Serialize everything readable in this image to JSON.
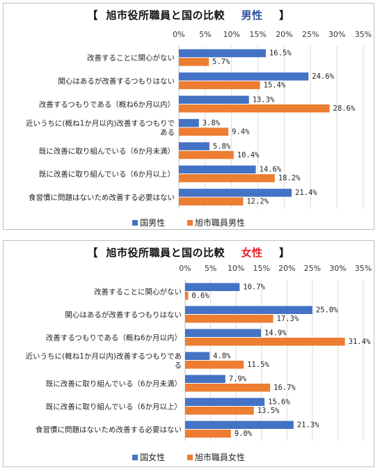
{
  "colors": {
    "blue": "#4472c4",
    "orange": "#ed7d31",
    "male_accent": "#2e4fa0",
    "female_accent": "#e8212b",
    "grid": "#d9d9d9"
  },
  "chart_data": [
    {
      "type": "bar",
      "title": {
        "prefix": "【",
        "main": "旭市役所職員と国の比較",
        "highlight": "男性",
        "suffix": "】"
      },
      "orientation": "horizontal",
      "xlim": [
        0,
        35
      ],
      "ticks": [
        "0%",
        "5%",
        "10%",
        "15%",
        "20%",
        "25%",
        "30%",
        "35%"
      ],
      "categories": [
        [
          "改善することに関心がない"
        ],
        [
          "関心はあるが改善するつもりはない"
        ],
        [
          "改善するつもりである（概ね6か月以内）"
        ],
        [
          "近いうちに(概ね1か月以内)改善するつもりで",
          "ある"
        ],
        [
          "既に改善に取り組んでいる（6か月未満）"
        ],
        [
          "既に改善に取り組んでいる（6か月以上）"
        ],
        [
          "食習慣に問題はないため改善する必要はない"
        ]
      ],
      "series": [
        {
          "name": "国男性",
          "values": [
            16.5,
            24.6,
            13.3,
            3.8,
            5.8,
            14.6,
            21.4
          ],
          "labels": [
            "16.5%",
            "24.6%",
            "13.3%",
            "3.8%",
            "5.8%",
            "14.6%",
            "21.4%"
          ]
        },
        {
          "name": "旭市職員男性",
          "values": [
            5.7,
            15.4,
            28.6,
            9.4,
            10.4,
            18.2,
            12.2
          ],
          "labels": [
            "5.7%",
            "15.4%",
            "28.6%",
            "9.4%",
            "10.4%",
            "18.2%",
            "12.2%"
          ]
        }
      ],
      "grid": true,
      "legend": "bottom"
    },
    {
      "type": "bar",
      "title": {
        "prefix": "【",
        "main": "旭市役所職員と国の比較",
        "highlight": "女性",
        "suffix": "】"
      },
      "orientation": "horizontal",
      "xlim": [
        0,
        35
      ],
      "ticks": [
        "0%",
        "5%",
        "10%",
        "15%",
        "20%",
        "25%",
        "30%",
        "35%"
      ],
      "categories": [
        [
          "改善することに関心がない"
        ],
        [
          "関心はあるが改善するつもりはない"
        ],
        [
          "改善するつもりである（概ね6か月以内）"
        ],
        [
          "近いうちに(概ね1か月以内)改善するつもりであ",
          "る"
        ],
        [
          "既に改善に取り組んでいる（6か月未満）"
        ],
        [
          "既に改善に取り組んでいる（6か月以上）"
        ],
        [
          "食習慣に問題はないため改善する必要はない"
        ]
      ],
      "series": [
        {
          "name": "国女性",
          "values": [
            10.7,
            25.0,
            14.9,
            4.8,
            7.9,
            15.6,
            21.3
          ],
          "labels": [
            "10.7%",
            "25.0%",
            "14.9%",
            "4.8%",
            "7.9%",
            "15.6%",
            "21.3%"
          ]
        },
        {
          "name": "旭市職員女性",
          "values": [
            0.6,
            17.3,
            31.4,
            11.5,
            16.7,
            13.5,
            9.0
          ],
          "labels": [
            "0.6%",
            "17.3%",
            "31.4%",
            "11.5%",
            "16.7%",
            "13.5%",
            "9.0%"
          ]
        }
      ],
      "grid": true,
      "legend": "bottom"
    }
  ]
}
